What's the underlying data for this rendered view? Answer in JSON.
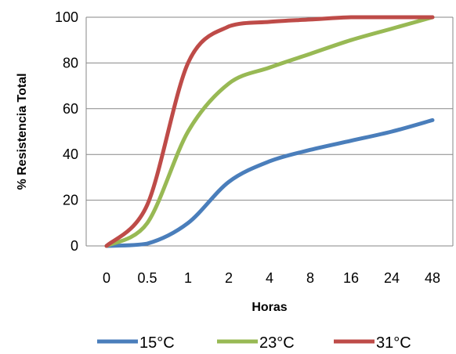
{
  "chart_data": {
    "type": "line",
    "title": "",
    "xlabel": "Horas",
    "ylabel": "% Resistencia Total",
    "categories": [
      "0",
      "0.5",
      "1",
      "2",
      "4",
      "8",
      "16",
      "24",
      "48"
    ],
    "ylim": [
      0,
      100
    ],
    "yticks": [
      "0",
      "20",
      "40",
      "60",
      "80",
      "100"
    ],
    "grid": true,
    "legend_position": "bottom",
    "series": [
      {
        "name": "15°C",
        "color": "#4a7ebb",
        "values": [
          0,
          1,
          10,
          28,
          37,
          42,
          46,
          50,
          55
        ]
      },
      {
        "name": "23°C",
        "color": "#98b954",
        "values": [
          0,
          10,
          50,
          71,
          78,
          84,
          90,
          95,
          100
        ]
      },
      {
        "name": "31°C",
        "color": "#be4b48",
        "values": [
          0,
          18,
          80,
          96,
          98,
          99,
          100,
          100,
          100
        ]
      }
    ]
  }
}
